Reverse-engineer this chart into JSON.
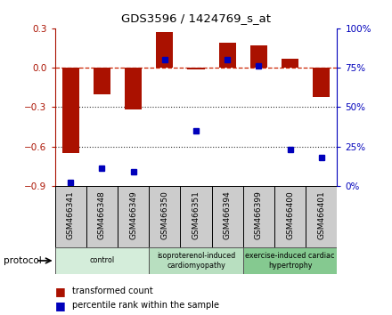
{
  "title": "GDS3596 / 1424769_s_at",
  "samples": [
    "GSM466341",
    "GSM466348",
    "GSM466349",
    "GSM466350",
    "GSM466351",
    "GSM466394",
    "GSM466399",
    "GSM466400",
    "GSM466401"
  ],
  "red_values": [
    -0.65,
    -0.2,
    -0.32,
    0.27,
    -0.01,
    0.19,
    0.17,
    0.07,
    -0.22
  ],
  "blue_values": [
    2.0,
    11.0,
    9.0,
    80.0,
    35.0,
    80.0,
    76.0,
    23.0,
    18.0
  ],
  "ylim_left": [
    -0.9,
    0.3
  ],
  "ylim_right": [
    0,
    100
  ],
  "yticks_left": [
    -0.9,
    -0.6,
    -0.3,
    0.0,
    0.3
  ],
  "yticks_right": [
    0,
    25,
    50,
    75,
    100
  ],
  "groups": [
    {
      "label": "control",
      "indices": [
        0,
        1,
        2
      ],
      "color": "#d4edda"
    },
    {
      "label": "isoproterenol-induced\ncardiomyopathy",
      "indices": [
        3,
        4,
        5
      ],
      "color": "#b8dfc0"
    },
    {
      "label": "exercise-induced cardiac\nhypertrophy",
      "indices": [
        6,
        7,
        8
      ],
      "color": "#85c990"
    }
  ],
  "red_color": "#aa1100",
  "blue_color": "#0000bb",
  "dashed_line_color": "#cc2200",
  "dotted_line_color": "#333333",
  "bar_width": 0.55,
  "blue_marker_size": 5,
  "sample_box_color": "#cccccc",
  "figsize": [
    4.4,
    3.54
  ],
  "dpi": 100
}
